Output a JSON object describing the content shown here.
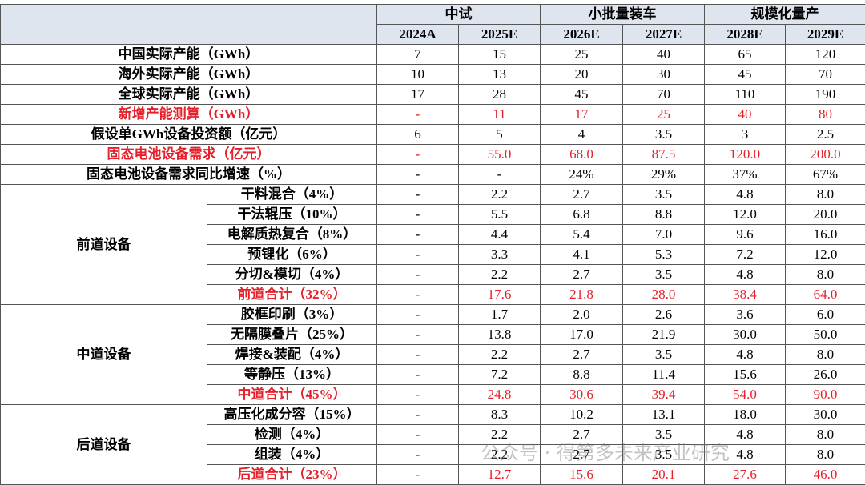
{
  "header": {
    "groups": [
      "中试",
      "小批量装车",
      "规模化量产"
    ],
    "years": [
      "2024A",
      "2025E",
      "2026E",
      "2027E",
      "2028E",
      "2029E"
    ]
  },
  "rows": [
    {
      "label": "中国实际产能（GWh）",
      "values": [
        "7",
        "15",
        "25",
        "40",
        "65",
        "120"
      ]
    },
    {
      "label": "海外实际产能（GWh）",
      "values": [
        "10",
        "13",
        "20",
        "30",
        "45",
        "70"
      ]
    },
    {
      "label": "全球实际产能（GWh）",
      "values": [
        "17",
        "28",
        "45",
        "70",
        "110",
        "190"
      ]
    },
    {
      "label": "新增产能测算（GWh）",
      "values": [
        "-",
        "11",
        "17",
        "25",
        "40",
        "80"
      ],
      "highlight": true
    },
    {
      "label": "假设单GWh设备投资额（亿元）",
      "values": [
        "6",
        "5",
        "4",
        "3.5",
        "3",
        "2.5"
      ]
    },
    {
      "label": "固态电池设备需求（亿元）",
      "values": [
        "-",
        "55.0",
        "68.0",
        "87.5",
        "120.0",
        "200.0"
      ],
      "highlight": true
    },
    {
      "label": "固态电池设备需求同比增速（%）",
      "values": [
        "-",
        "-",
        "24%",
        "29%",
        "37%",
        "67%"
      ]
    }
  ],
  "sections": [
    {
      "name": "前道设备",
      "rows": [
        {
          "label": "干料混合（4%）",
          "values": [
            "-",
            "2.2",
            "2.7",
            "3.5",
            "4.8",
            "8.0"
          ]
        },
        {
          "label": "干法辊压（10%）",
          "values": [
            "-",
            "5.5",
            "6.8",
            "8.8",
            "12.0",
            "20.0"
          ]
        },
        {
          "label": "电解质热复合（8%）",
          "values": [
            "-",
            "4.4",
            "5.4",
            "7.0",
            "9.6",
            "16.0"
          ]
        },
        {
          "label": "预锂化（6%）",
          "values": [
            "-",
            "3.3",
            "4.1",
            "5.3",
            "7.2",
            "12.0"
          ]
        },
        {
          "label": "分切&模切（4%）",
          "values": [
            "-",
            "2.2",
            "2.7",
            "3.5",
            "4.8",
            "8.0"
          ]
        },
        {
          "label": "前道合计（32%）",
          "values": [
            "-",
            "17.6",
            "21.8",
            "28.0",
            "38.4",
            "64.0"
          ],
          "highlight": true
        }
      ]
    },
    {
      "name": "中道设备",
      "rows": [
        {
          "label": "胶框印刷（3%）",
          "values": [
            "-",
            "1.7",
            "2.0",
            "2.6",
            "3.6",
            "6.0"
          ]
        },
        {
          "label": "无隔膜叠片（25%）",
          "values": [
            "-",
            "13.8",
            "17.0",
            "21.9",
            "30.0",
            "50.0"
          ]
        },
        {
          "label": "焊接&装配（4%）",
          "values": [
            "-",
            "2.2",
            "2.7",
            "3.5",
            "4.8",
            "8.0"
          ]
        },
        {
          "label": "等静压（13%）",
          "values": [
            "-",
            "7.2",
            "8.8",
            "11.4",
            "15.6",
            "26.0"
          ]
        },
        {
          "label": "中道合计（45%）",
          "values": [
            "-",
            "24.8",
            "30.6",
            "39.4",
            "54.0",
            "90.0"
          ],
          "highlight": true
        }
      ]
    },
    {
      "name": "后道设备",
      "rows": [
        {
          "label": "高压化成分容（15%）",
          "values": [
            "-",
            "8.3",
            "10.2",
            "13.1",
            "18.0",
            "30.0"
          ]
        },
        {
          "label": "检测（4%）",
          "values": [
            "-",
            "2.2",
            "2.7",
            "3.5",
            "4.8",
            "8.0"
          ]
        },
        {
          "label": "组装（4%）",
          "values": [
            "-",
            "2.2",
            "2.7",
            "3.5",
            "4.8",
            "8.0"
          ]
        },
        {
          "label": "后道合计（23%）",
          "values": [
            "-",
            "12.7",
            "15.6",
            "20.1",
            "27.6",
            "46.0"
          ],
          "highlight": true
        }
      ]
    }
  ],
  "watermark": "公众号 · 得第多未来产业研究"
}
